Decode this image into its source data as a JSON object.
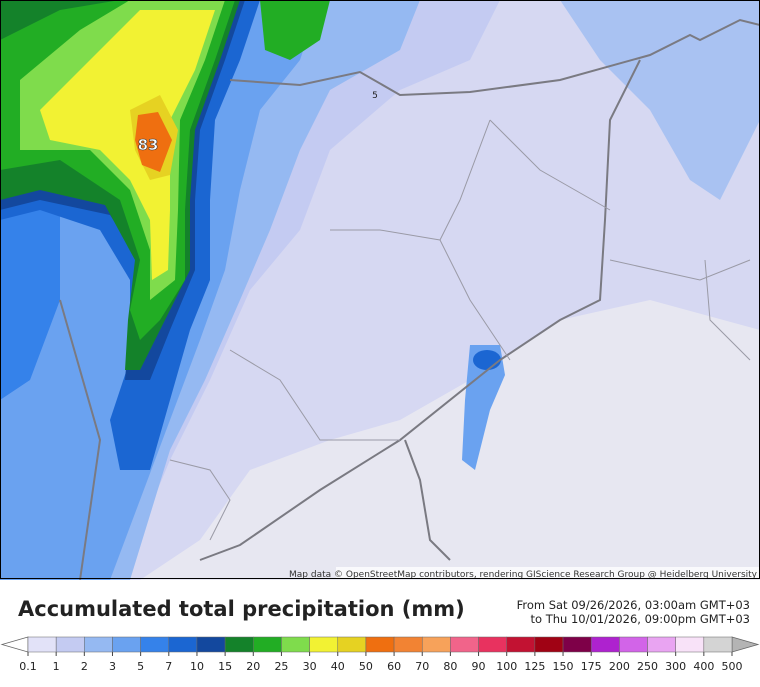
{
  "map": {
    "labels": [
      "83",
      "5"
    ],
    "attribution": "Map data © OpenStreetMap contributors, rendering GIScience Research Group @ Heidelberg University"
  },
  "legend": {
    "title": "Accumulated total precipitation (mm)",
    "period": [
      "From Sat 09/26/2026, 03:00am GMT+03",
      "to Thu 10/01/2026, 09:00pm GMT+03"
    ],
    "ticks": [
      0.1,
      1,
      2,
      3,
      5,
      7,
      10,
      15,
      20,
      25,
      30,
      40,
      50,
      60,
      70,
      80,
      90,
      100,
      125,
      150,
      175,
      200,
      250,
      300,
      400,
      500
    ],
    "colors": [
      "#e2e2f8",
      "#c4cbf2",
      "#95b9f2",
      "#6aa2f0",
      "#3582ea",
      "#1b66d2",
      "#13489e",
      "#14822a",
      "#22ad24",
      "#7fdc4c",
      "#f2f233",
      "#e6d222",
      "#ef6f10",
      "#f28333",
      "#f7a25a",
      "#f1648a",
      "#e8325f",
      "#c21232",
      "#a00214",
      "#7e0048",
      "#ae22cf",
      "#d264e8",
      "#e9a4f2",
      "#f8e2f8",
      "#d4d4d4"
    ],
    "end_colors": [
      "#ffffff",
      "#b4b4b4"
    ]
  }
}
